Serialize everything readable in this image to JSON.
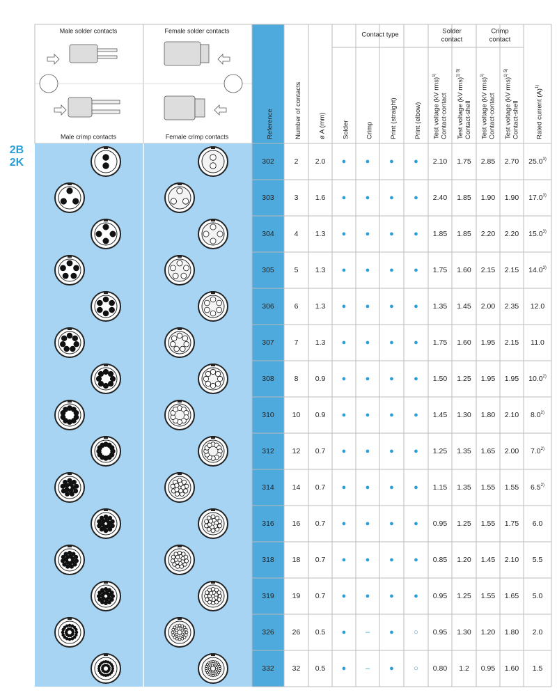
{
  "side_label": [
    "2B",
    "2K"
  ],
  "diagram_labels": {
    "male_solder": "Male solder contacts",
    "female_solder": "Female solder contacts",
    "male_crimp": "Male crimp contacts",
    "female_crimp": "Female crimp contacts"
  },
  "table": {
    "headers": {
      "reference": "Reference",
      "contacts": "Number of contacts",
      "diameter": "ø A (mm)",
      "contact_type": {
        "title": "Contact type",
        "columns": [
          "Solder",
          "Crimp",
          "Print (straight)",
          "Print (elbow)"
        ]
      },
      "solder_contact": {
        "title": [
          "Solder",
          "contact"
        ],
        "columns": [
          {
            "lines": [
              "Test voltage (kV rms)",
              "Contact-contact"
            ],
            "note": "1)"
          },
          {
            "lines": [
              "Test voltage (kV rms)",
              "Contact-shell"
            ],
            "note": "1) 5)"
          }
        ]
      },
      "crimp_contact": {
        "title": [
          "Crimp",
          "contact"
        ],
        "columns": [
          {
            "lines": [
              "Test voltage (kV rms)",
              "Contact-contact"
            ],
            "note": "1)"
          },
          {
            "lines": [
              "Test voltage (kV rms)",
              "Contact-shell"
            ],
            "note": "1) 5)"
          }
        ]
      },
      "rated": {
        "lines": [
          "Rated current (A)"
        ],
        "note": "1)"
      }
    },
    "rows": [
      {
        "reference": "302",
        "contacts": "2",
        "diameter": "2.0",
        "types": [
          "●",
          "●",
          "●",
          "●"
        ],
        "values": [
          "2.10",
          "1.75",
          "2.85",
          "2.70"
        ],
        "rated": "25.0",
        "rated_note": "3)"
      },
      {
        "reference": "303",
        "contacts": "3",
        "diameter": "1.6",
        "types": [
          "●",
          "●",
          "●",
          "●"
        ],
        "values": [
          "2.40",
          "1.85",
          "1.90",
          "1.90"
        ],
        "rated": "17.0",
        "rated_note": "3)"
      },
      {
        "reference": "304",
        "contacts": "4",
        "diameter": "1.3",
        "types": [
          "●",
          "●",
          "●",
          "●"
        ],
        "values": [
          "1.85",
          "1.85",
          "2.20",
          "2.20"
        ],
        "rated": "15.0",
        "rated_note": "3)"
      },
      {
        "reference": "305",
        "contacts": "5",
        "diameter": "1.3",
        "types": [
          "●",
          "●",
          "●",
          "●"
        ],
        "values": [
          "1.75",
          "1.60",
          "2.15",
          "2.15"
        ],
        "rated": "14.0",
        "rated_note": "3)"
      },
      {
        "reference": "306",
        "contacts": "6",
        "diameter": "1.3",
        "types": [
          "●",
          "●",
          "●",
          "●"
        ],
        "values": [
          "1.35",
          "1.45",
          "2.00",
          "2.35"
        ],
        "rated": "12.0"
      },
      {
        "reference": "307",
        "contacts": "7",
        "diameter": "1.3",
        "types": [
          "●",
          "●",
          "●",
          "●"
        ],
        "values": [
          "1.75",
          "1.60",
          "1.95",
          "2.15"
        ],
        "rated": "11.0"
      },
      {
        "reference": "308",
        "contacts": "8",
        "diameter": "0.9",
        "types": [
          "●",
          "●",
          "●",
          "●"
        ],
        "values": [
          "1.50",
          "1.25",
          "1.95",
          "1.95"
        ],
        "rated": "10.0",
        "rated_note": "2)"
      },
      {
        "reference": "310",
        "contacts": "10",
        "diameter": "0.9",
        "types": [
          "●",
          "●",
          "●",
          "●"
        ],
        "values": [
          "1.45",
          "1.30",
          "1.80",
          "2.10"
        ],
        "rated": "8.0",
        "rated_note": "2)"
      },
      {
        "reference": "312",
        "contacts": "12",
        "diameter": "0.7",
        "types": [
          "●",
          "●",
          "●",
          "●"
        ],
        "values": [
          "1.25",
          "1.35",
          "1.65",
          "2.00"
        ],
        "rated": "7.0",
        "rated_note": "2)"
      },
      {
        "reference": "314",
        "contacts": "14",
        "diameter": "0.7",
        "types": [
          "●",
          "●",
          "●",
          "●"
        ],
        "values": [
          "1.15",
          "1.35",
          "1.55",
          "1.55"
        ],
        "rated": "6.5",
        "rated_note": "2)"
      },
      {
        "reference": "316",
        "contacts": "16",
        "diameter": "0.7",
        "types": [
          "●",
          "●",
          "●",
          "●"
        ],
        "values": [
          "0.95",
          "1.25",
          "1.55",
          "1.75"
        ],
        "rated": "6.0"
      },
      {
        "reference": "318",
        "contacts": "18",
        "diameter": "0.7",
        "types": [
          "●",
          "●",
          "●",
          "●"
        ],
        "values": [
          "0.85",
          "1.20",
          "1.45",
          "2.10"
        ],
        "rated": "5.5"
      },
      {
        "reference": "319",
        "contacts": "19",
        "diameter": "0.7",
        "types": [
          "●",
          "●",
          "●",
          "●"
        ],
        "values": [
          "0.95",
          "1.25",
          "1.55",
          "1.65"
        ],
        "rated": "5.0"
      },
      {
        "reference": "326",
        "contacts": "26",
        "diameter": "0.5",
        "types": [
          "●",
          "–",
          "●",
          "○"
        ],
        "values": [
          "0.95",
          "1.30",
          "1.20",
          "1.80"
        ],
        "rated": "2.0"
      },
      {
        "reference": "332",
        "contacts": "32",
        "diameter": "0.5",
        "types": [
          "●",
          "–",
          "●",
          "○"
        ],
        "values": [
          "0.80",
          "1.2",
          "0.95",
          "1.60"
        ],
        "rated": "1.5"
      }
    ]
  }
}
